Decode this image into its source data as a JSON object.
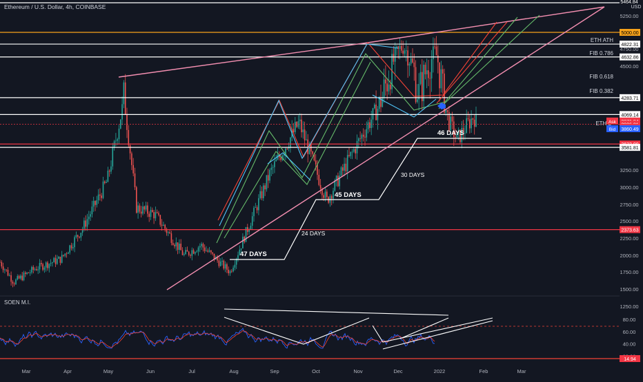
{
  "header": {
    "symbol_title": "Ethereum / U.S. Dollar, 4h, COINBASE"
  },
  "price_axis": {
    "currency": "USD",
    "ticks": [
      5250,
      4750,
      4500,
      3250,
      3000,
      2750,
      2500,
      2250,
      2000,
      1750,
      1500,
      1250
    ],
    "tick_labels": [
      "5250.00",
      "4750.00",
      "4500.00",
      "3250.00",
      "3000.00",
      "2750.00",
      "2500.00",
      "2250.00",
      "2000.00",
      "1750.00",
      "1500.00",
      "1250.00"
    ],
    "top_partial_label": "5464.84",
    "badges": [
      {
        "label": "5000.00",
        "value": 5000,
        "color": "#f7a21b",
        "text_color": "#000000"
      },
      {
        "label": "4822.31",
        "value": 4822.31,
        "color": "#ffffff",
        "text_color": "#000000"
      },
      {
        "label": "4632.86",
        "value": 4632.86,
        "color": "#ffffff",
        "text_color": "#000000"
      },
      {
        "label": "4283.71",
        "value": 4283.71,
        "color": "#ffffff",
        "text_color": "#000000"
      },
      {
        "label": "4069.14",
        "value": 4069.14,
        "color": "#ffffff",
        "text_color": "#000000"
      },
      {
        "label": "3971.84",
        "value": 3971.84,
        "color": "#f23645",
        "text_color": "#ffffff",
        "tag": "Ask"
      },
      {
        "label": "3926.21",
        "value": 3926.21,
        "color": "#f23645",
        "text_color": "#ffffff"
      },
      {
        "label": "01:39:27",
        "value": 3880,
        "color": "#f23645",
        "text_color": "#ffffff"
      },
      {
        "label": "3860.49",
        "value": 3860.49,
        "color": "#2962ff",
        "text_color": "#ffffff",
        "tag": "Bid"
      },
      {
        "label": "3633.00",
        "value": 3633,
        "color": "#f23645",
        "text_color": "#ffffff"
      },
      {
        "label": "3581.81",
        "value": 3581.81,
        "color": "#ffffff",
        "text_color": "#000000"
      },
      {
        "label": "2373.63",
        "value": 2373.63,
        "color": "#f23645",
        "text_color": "#ffffff"
      }
    ]
  },
  "levels": [
    {
      "label": "ETH ATH",
      "value": 4822.31,
      "color": "#ffffff"
    },
    {
      "label": "FIB 0.786",
      "value": 4632.86,
      "color": "#ffffff"
    },
    {
      "label": "FIB 0.618",
      "value": 4283.71,
      "color": "#ffffff"
    },
    {
      "label": "FIB 0.382",
      "value": 4069.14,
      "color": "#ffffff"
    },
    {
      "label": "ETH L",
      "value": 3633,
      "color": "#ffffff"
    }
  ],
  "annotations": {
    "days": [
      "47 DAYS",
      "24 DAYS",
      "45 DAYS",
      "30 DAYS",
      "46 DAYS"
    ]
  },
  "indicator": {
    "name": "SOEN M.I.",
    "ticks": [
      80,
      60,
      40,
      20
    ],
    "tick_labels": [
      "80.00",
      "60.00",
      "40.00",
      "20.00"
    ],
    "badge": {
      "label": "14.94",
      "color": "#f23645"
    }
  },
  "time_axis": {
    "labels": [
      "Mar",
      "Apr",
      "May",
      "Jun",
      "Jul",
      "Aug",
      "Sep",
      "Oct",
      "Nov",
      "Dec",
      "2022",
      "Feb",
      "Mar"
    ]
  },
  "colors": {
    "background": "#131722",
    "up": "#26a69a",
    "down": "#ef5350",
    "wedge": "#f48fb1",
    "channel_red": "#f44336",
    "channel_green": "#66bb6a",
    "channel_cyan": "#4fc3f7",
    "level_orange": "#f7a21b",
    "level_red": "#f23645",
    "rsi_red": "#f44336",
    "rsi_blue": "#2962ff"
  },
  "chart_data": {
    "type": "candlestick",
    "title": "Ethereum / U.S. Dollar, 4h, COINBASE",
    "x_range": [
      "2021-02-20",
      "2022-03-31"
    ],
    "y_range": [
      1150,
      5500
    ],
    "price_path": [
      {
        "date": "2021-02-20",
        "price": 1900
      },
      {
        "date": "2021-03-01",
        "price": 1600
      },
      {
        "date": "2021-03-15",
        "price": 1800
      },
      {
        "date": "2021-04-01",
        "price": 1950
      },
      {
        "date": "2021-04-15",
        "price": 2400
      },
      {
        "date": "2021-05-01",
        "price": 3100
      },
      {
        "date": "2021-05-12",
        "price": 4300
      },
      {
        "date": "2021-05-20",
        "price": 2700
      },
      {
        "date": "2021-06-01",
        "price": 2600
      },
      {
        "date": "2021-06-20",
        "price": 2000
      },
      {
        "date": "2021-07-01",
        "price": 2150
      },
      {
        "date": "2021-07-20",
        "price": 1750
      },
      {
        "date": "2021-08-15",
        "price": 3200
      },
      {
        "date": "2021-09-03",
        "price": 3950
      },
      {
        "date": "2021-09-21",
        "price": 2800
      },
      {
        "date": "2021-10-15",
        "price": 3800
      },
      {
        "date": "2021-11-10",
        "price": 4822
      },
      {
        "date": "2021-11-20",
        "price": 4300
      },
      {
        "date": "2021-12-01",
        "price": 4700
      },
      {
        "date": "2021-12-10",
        "price": 3950
      },
      {
        "date": "2021-12-15",
        "price": 3700
      },
      {
        "date": "2021-12-26",
        "price": 4050
      },
      {
        "date": "2021-12-28",
        "price": 3930
      }
    ],
    "rsi_range": [
      15,
      85
    ]
  }
}
